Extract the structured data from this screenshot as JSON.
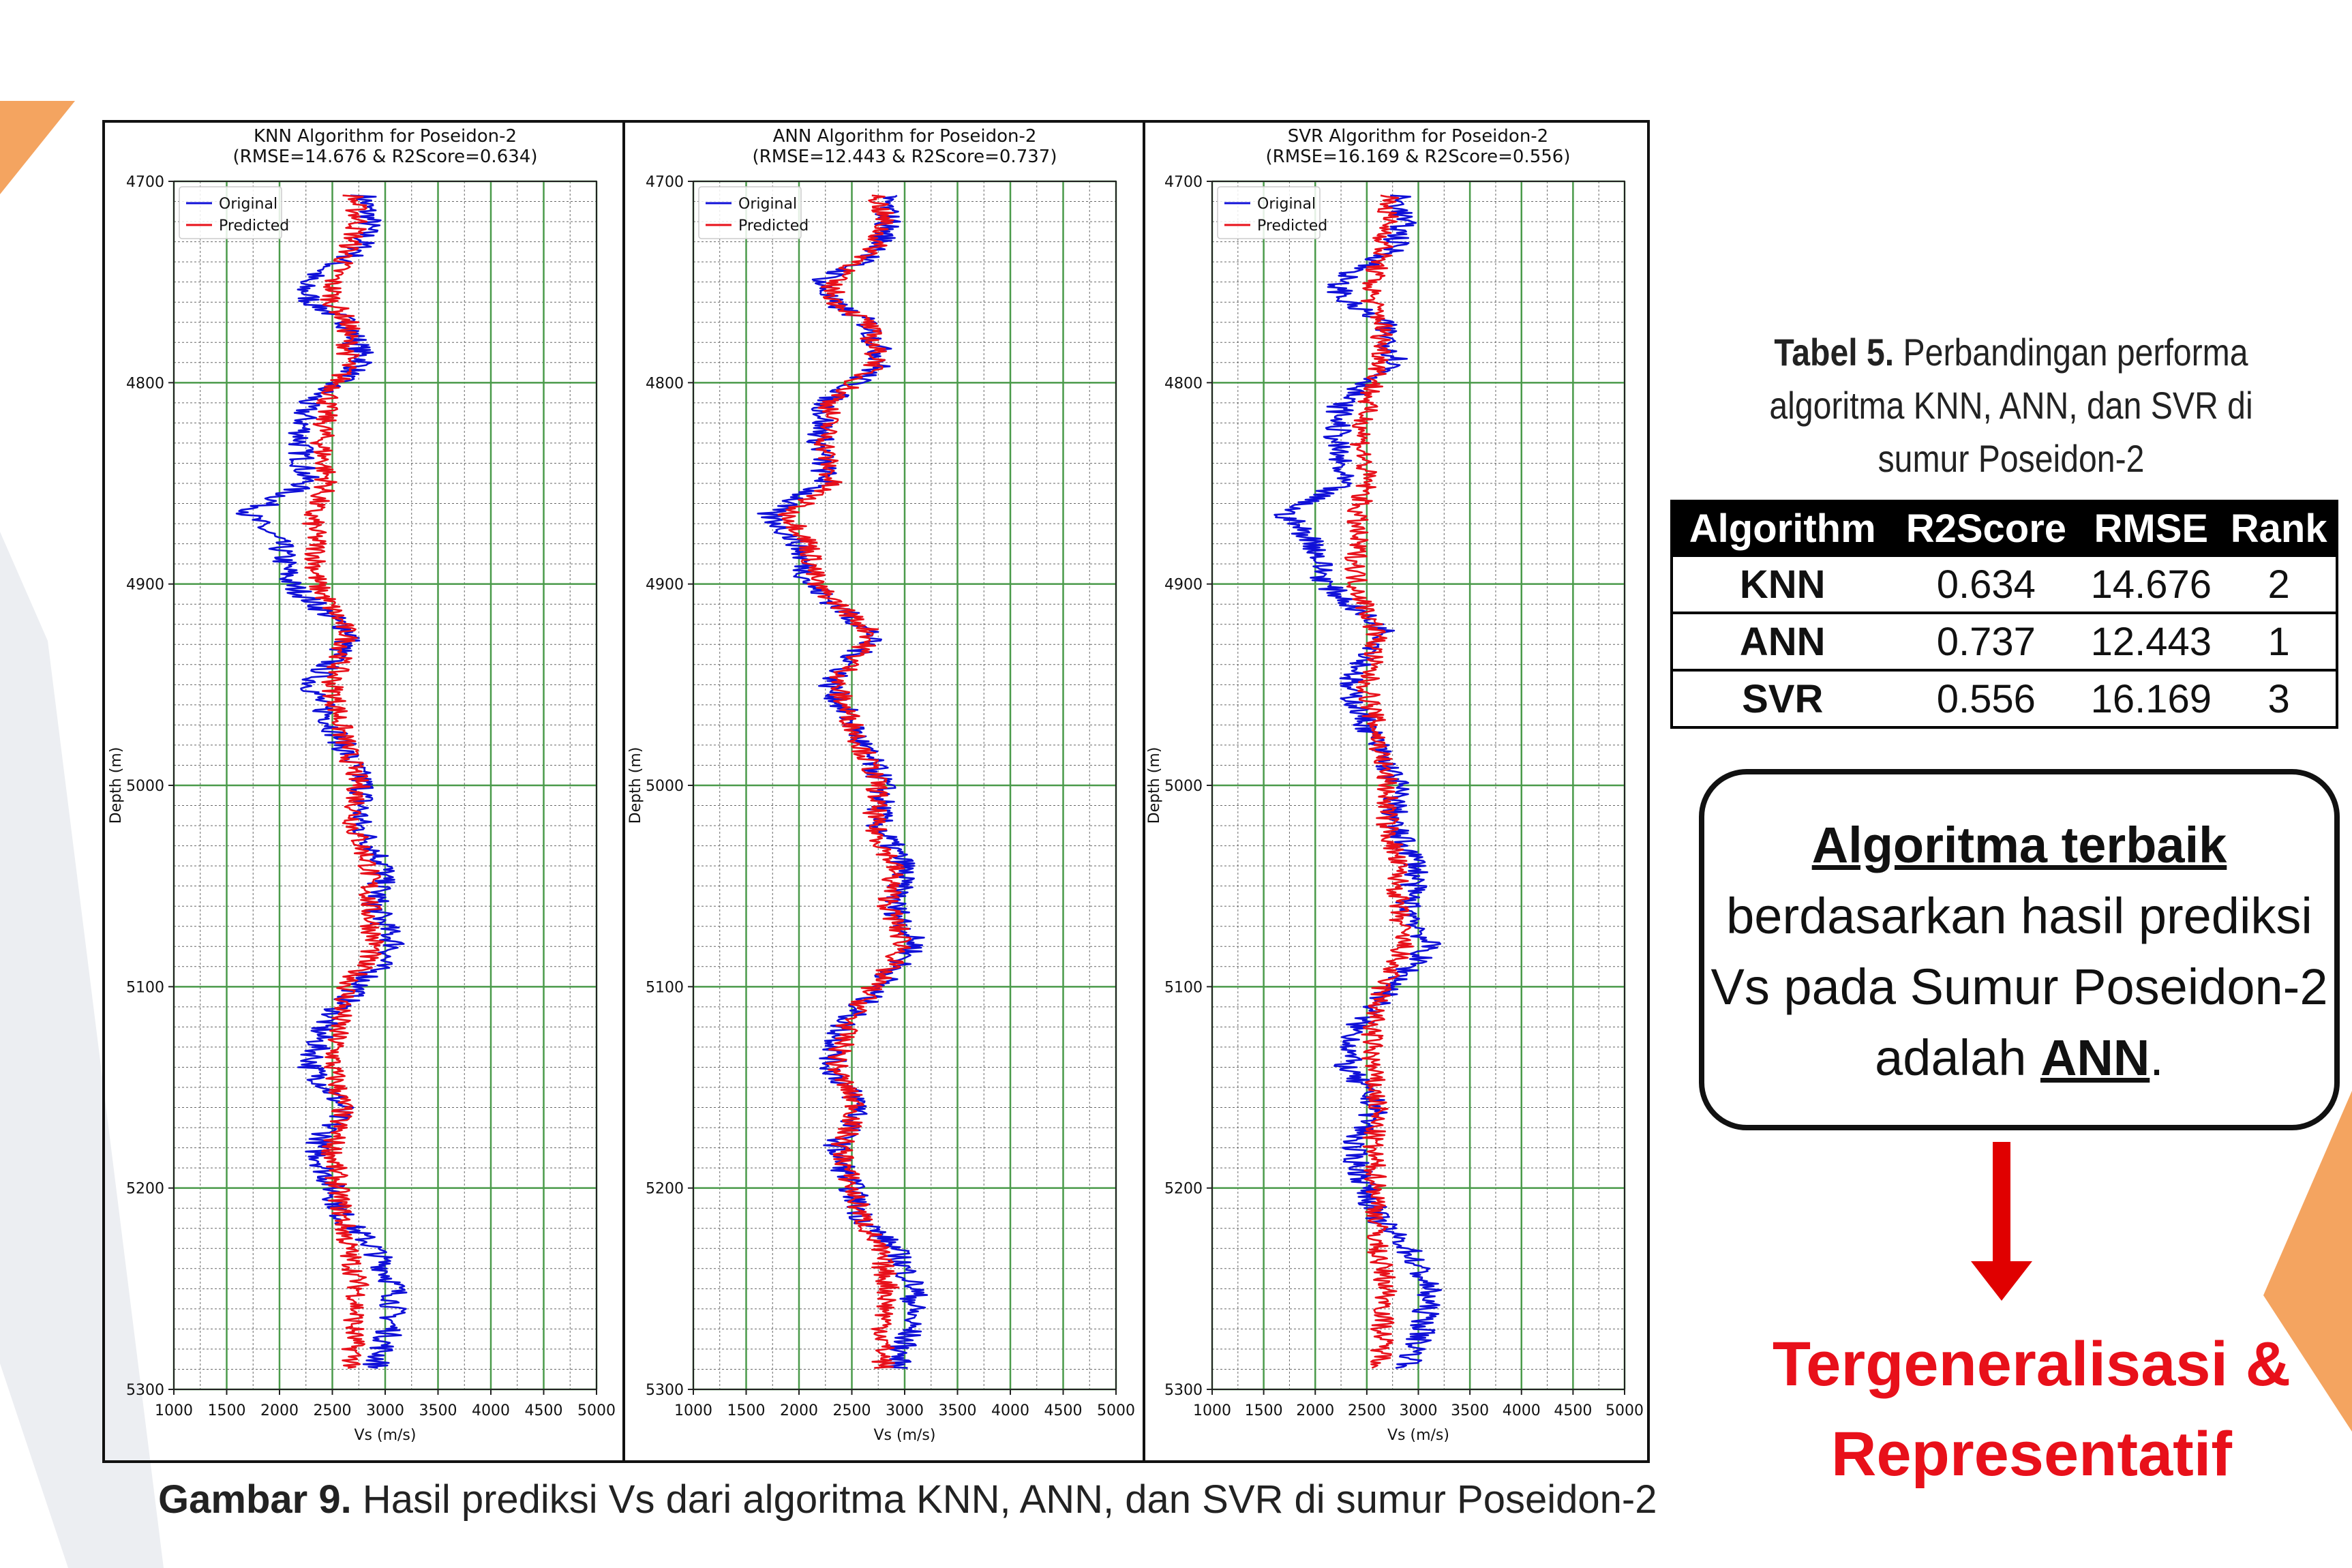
{
  "colors": {
    "original": "#1010d8",
    "predicted": "#e8101a",
    "major_grid": "#4a9a4a",
    "minor_grid": "#666666",
    "accent_orange": "#f4a460"
  },
  "chart_data": [
    {
      "type": "line",
      "title": "KNN Algorithm for Poseidon-2",
      "subtitle": "(RMSE=14.676 & R2Score=0.634)",
      "xlabel": "Vs (m/s)",
      "ylabel": "Depth (m)",
      "xlim": [
        1000,
        5000
      ],
      "ylim": [
        5300,
        4700
      ],
      "xticks": [
        "1000",
        "1500",
        "2000",
        "2500",
        "3000",
        "3500",
        "4000",
        "4500",
        "5000"
      ],
      "yticks": [
        "4700",
        "4800",
        "4900",
        "5000",
        "5100",
        "5200",
        "5300"
      ],
      "grid": true,
      "legend": "top-left",
      "series": [
        {
          "name": "Original",
          "color": "#1010d8",
          "depth": [
            4707,
            4720,
            4735,
            4750,
            4760,
            4770,
            4790,
            4810,
            4830,
            4850,
            4865,
            4880,
            4900,
            4925,
            4950,
            4975,
            5000,
            5020,
            5040,
            5060,
            5080,
            5100,
            5120,
            5140,
            5160,
            5180,
            5200,
            5215,
            5230,
            5250,
            5270,
            5290
          ],
          "values": [
            2800,
            2850,
            2750,
            2200,
            2300,
            2650,
            2800,
            2250,
            2200,
            2250,
            1700,
            2000,
            2100,
            2700,
            2300,
            2550,
            2800,
            2750,
            3000,
            2900,
            3100,
            2750,
            2400,
            2300,
            2600,
            2350,
            2500,
            2600,
            2900,
            3100,
            3050,
            2900
          ]
        },
        {
          "name": "Predicted",
          "color": "#e8101a",
          "depth": [
            4707,
            4720,
            4735,
            4750,
            4760,
            4770,
            4790,
            4810,
            4830,
            4850,
            4865,
            4880,
            4900,
            4925,
            4950,
            4975,
            5000,
            5020,
            5040,
            5060,
            5080,
            5100,
            5120,
            5140,
            5160,
            5180,
            5200,
            5215,
            5230,
            5250,
            5270,
            5290
          ],
          "values": [
            2700,
            2750,
            2650,
            2500,
            2500,
            2650,
            2650,
            2450,
            2400,
            2450,
            2300,
            2350,
            2350,
            2650,
            2500,
            2600,
            2750,
            2700,
            2850,
            2850,
            2900,
            2650,
            2550,
            2500,
            2600,
            2500,
            2550,
            2600,
            2650,
            2750,
            2700,
            2700
          ]
        }
      ]
    },
    {
      "type": "line",
      "title": "ANN Algorithm for Poseidon-2",
      "subtitle": "(RMSE=12.443 & R2Score=0.737)",
      "xlabel": "Vs (m/s)",
      "ylabel": "Depth (m)",
      "xlim": [
        1000,
        5000
      ],
      "ylim": [
        5300,
        4700
      ],
      "xticks": [
        "1000",
        "1500",
        "2000",
        "2500",
        "3000",
        "3500",
        "4000",
        "4500",
        "5000"
      ],
      "yticks": [
        "4700",
        "4800",
        "4900",
        "5000",
        "5100",
        "5200",
        "5300"
      ],
      "grid": true,
      "legend": "top-left",
      "series": [
        {
          "name": "Original",
          "color": "#1010d8",
          "depth": [
            4707,
            4720,
            4735,
            4750,
            4760,
            4770,
            4790,
            4810,
            4830,
            4850,
            4865,
            4880,
            4900,
            4925,
            4950,
            4975,
            5000,
            5020,
            5040,
            5060,
            5080,
            5100,
            5120,
            5140,
            5160,
            5180,
            5200,
            5215,
            5230,
            5250,
            5270,
            5290
          ],
          "values": [
            2800,
            2850,
            2750,
            2200,
            2300,
            2650,
            2800,
            2250,
            2200,
            2250,
            1700,
            2000,
            2100,
            2700,
            2300,
            2550,
            2800,
            2750,
            3000,
            2900,
            3100,
            2750,
            2400,
            2300,
            2600,
            2350,
            2500,
            2600,
            2900,
            3100,
            3050,
            2900
          ]
        },
        {
          "name": "Predicted",
          "color": "#e8101a",
          "depth": [
            4707,
            4720,
            4735,
            4750,
            4760,
            4770,
            4790,
            4810,
            4830,
            4850,
            4865,
            4880,
            4900,
            4925,
            4950,
            4975,
            5000,
            5020,
            5040,
            5060,
            5080,
            5100,
            5120,
            5140,
            5160,
            5180,
            5200,
            5215,
            5230,
            5250,
            5270,
            5290
          ],
          "values": [
            2750,
            2800,
            2700,
            2300,
            2350,
            2650,
            2750,
            2300,
            2250,
            2300,
            1900,
            2100,
            2150,
            2700,
            2350,
            2550,
            2750,
            2700,
            2900,
            2850,
            3000,
            2700,
            2450,
            2350,
            2550,
            2400,
            2500,
            2600,
            2750,
            2850,
            2800,
            2800
          ]
        }
      ]
    },
    {
      "type": "line",
      "title": "SVR Algorithm for Poseidon-2",
      "subtitle": "(RMSE=16.169 & R2Score=0.556)",
      "xlabel": "Vs (m/s)",
      "ylabel": "Depth (m)",
      "xlim": [
        1000,
        5000
      ],
      "ylim": [
        5300,
        4700
      ],
      "xticks": [
        "1000",
        "1500",
        "2000",
        "2500",
        "3000",
        "3500",
        "4000",
        "4500",
        "5000"
      ],
      "yticks": [
        "4700",
        "4800",
        "4900",
        "5000",
        "5100",
        "5200",
        "5300"
      ],
      "grid": true,
      "legend": "top-left",
      "series": [
        {
          "name": "Original",
          "color": "#1010d8",
          "depth": [
            4707,
            4720,
            4735,
            4750,
            4760,
            4770,
            4790,
            4810,
            4830,
            4850,
            4865,
            4880,
            4900,
            4925,
            4950,
            4975,
            5000,
            5020,
            5040,
            5060,
            5080,
            5100,
            5120,
            5140,
            5160,
            5180,
            5200,
            5215,
            5230,
            5250,
            5270,
            5290
          ],
          "values": [
            2800,
            2850,
            2750,
            2200,
            2300,
            2650,
            2800,
            2250,
            2200,
            2250,
            1700,
            2000,
            2100,
            2700,
            2300,
            2550,
            2800,
            2750,
            3000,
            2900,
            3100,
            2750,
            2400,
            2300,
            2600,
            2350,
            2500,
            2600,
            2900,
            3100,
            3050,
            2900
          ]
        },
        {
          "name": "Predicted",
          "color": "#e8101a",
          "depth": [
            4707,
            4720,
            4735,
            4750,
            4760,
            4770,
            4790,
            4810,
            4830,
            4850,
            4865,
            4880,
            4900,
            4925,
            4950,
            4975,
            5000,
            5020,
            5040,
            5060,
            5080,
            5100,
            5120,
            5140,
            5160,
            5180,
            5200,
            5215,
            5230,
            5250,
            5270,
            5290
          ],
          "values": [
            2700,
            2700,
            2650,
            2550,
            2550,
            2650,
            2650,
            2500,
            2450,
            2500,
            2400,
            2400,
            2400,
            2600,
            2500,
            2600,
            2700,
            2700,
            2800,
            2800,
            2850,
            2650,
            2550,
            2550,
            2600,
            2550,
            2600,
            2600,
            2600,
            2700,
            2650,
            2650
          ]
        }
      ]
    }
  ],
  "table": {
    "caption_bold": "Tabel 5.",
    "caption_lines": [
      "Perbandingan performa",
      "algoritma KNN, ANN, dan SVR di",
      "sumur Poseidon-2"
    ],
    "headers": [
      "Algorithm",
      "R2Score",
      "RMSE",
      "Rank"
    ],
    "rows": [
      [
        "KNN",
        "0.634",
        "14.676",
        "2"
      ],
      [
        "ANN",
        "0.737",
        "12.443",
        "1"
      ],
      [
        "SVR",
        "0.556",
        "16.169",
        "3"
      ]
    ]
  },
  "callout": {
    "title": "Algoritma terbaik",
    "line1": "berdasarkan hasil prediksi",
    "line2": "Vs pada Sumur Poseidon-2",
    "line3_prefix": "adalah ",
    "line3_highlight": "ANN",
    "line3_suffix": "."
  },
  "conclusion": {
    "line1": "Tergeneralisasi &",
    "line2": "Representatif"
  },
  "figure_caption": {
    "bold": "Gambar 9.",
    "text": " Hasil prediksi Vs dari algoritma KNN, ANN, dan SVR di sumur  Poseidon-2"
  }
}
